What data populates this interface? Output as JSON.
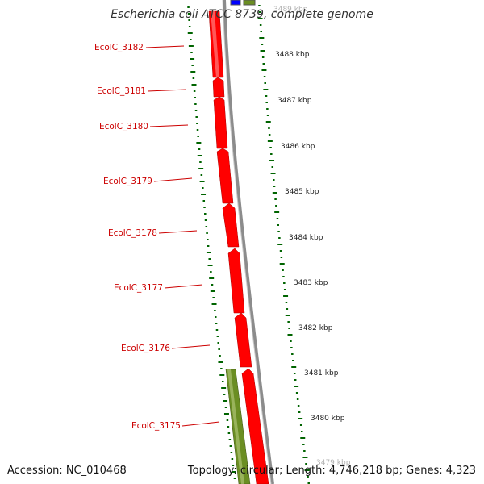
{
  "title": "Escherichia coli ATCC 8739, complete genome",
  "accession": "Accession: NC_010468",
  "summary": "Topology: circular; Length: 4,746,218 bp; Genes: 4,323",
  "colors": {
    "cds_forward": "#ff0000",
    "rna": "#6b8e23",
    "other": "#0000ff",
    "gc_dots": "#006400",
    "backbone": "#808080",
    "gene_label": "#cc0000"
  },
  "gene_labels": [
    "EcolC_3182",
    "EcolC_3181",
    "EcolC_3180",
    "EcolC_3179",
    "EcolC_3178",
    "EcolC_3177",
    "EcolC_3176",
    "EcolC_3175"
  ],
  "ticks": [
    "3489 kbp",
    "3488 kbp",
    "3487 kbp",
    "3486 kbp",
    "3485 kbp",
    "3484 kbp",
    "3483 kbp",
    "3482 kbp",
    "3481 kbp",
    "3480 kbp",
    "3479 kbp"
  ]
}
